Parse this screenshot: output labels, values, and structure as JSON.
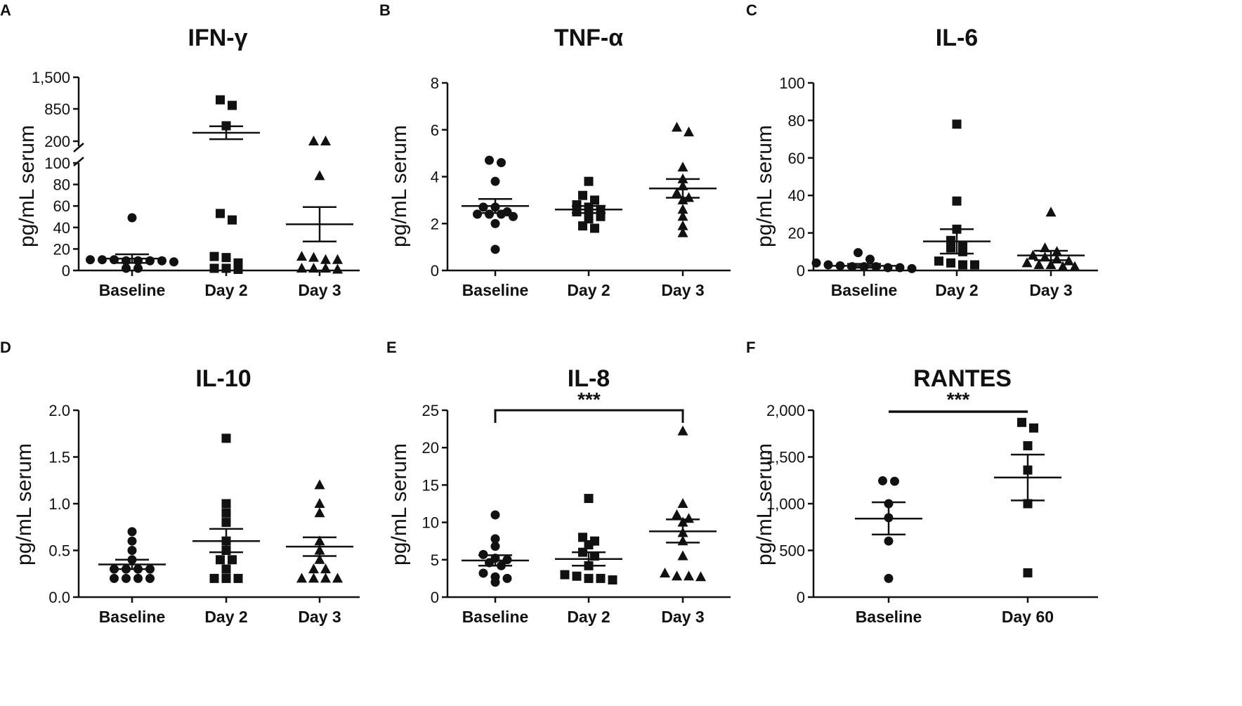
{
  "chart_data": [
    {
      "id": "A",
      "panel_letter": "A",
      "type": "scatter",
      "title": "IFN-γ",
      "xlabel": "",
      "ylabel": "pg/mL serum",
      "broken_axis": true,
      "categories": [
        "Baseline",
        "Day 2",
        "Day 3"
      ],
      "markers": [
        "circle",
        "square",
        "triangle"
      ],
      "yticks": [
        "0",
        "20",
        "40",
        "60",
        "80",
        "100",
        "200",
        "850",
        "1,500"
      ],
      "series": [
        {
          "name": "Baseline",
          "values": [
            10,
            9,
            10,
            9,
            8,
            9,
            10,
            9,
            2,
            2,
            49
          ],
          "mean": 11,
          "sem_low": 7,
          "sem_high": 15
        },
        {
          "name": "Day 2",
          "values": [
            1036,
            922,
            510,
            53,
            47,
            12,
            13,
            7,
            2,
            1,
            2
          ],
          "mean": 370,
          "sem_low": 240,
          "sem_high": 500
        },
        {
          "name": "Day 3",
          "values": [
            200,
            200,
            88,
            12,
            13,
            10,
            10,
            2,
            2,
            2,
            1
          ],
          "mean": 43,
          "sem_low": 27,
          "sem_high": 59
        }
      ]
    },
    {
      "id": "B",
      "panel_letter": "B",
      "type": "scatter",
      "title": "TNF-α",
      "xlabel": "",
      "ylabel": "pg/mL serum",
      "ylim": [
        0,
        8
      ],
      "categories": [
        "Baseline",
        "Day 2",
        "Day 3"
      ],
      "markers": [
        "circle",
        "square",
        "triangle"
      ],
      "yticks": [
        "0",
        "2",
        "4",
        "6",
        "8"
      ],
      "series": [
        {
          "name": "Baseline",
          "values": [
            4.7,
            4.6,
            3.8,
            2.7,
            2.7,
            2.5,
            2.4,
            2.4,
            2.4,
            2.3,
            2.0,
            0.9
          ],
          "mean": 2.75,
          "sem_low": 2.45,
          "sem_high": 3.05
        },
        {
          "name": "Day 2",
          "values": [
            3.8,
            3.2,
            3.0,
            2.8,
            2.7,
            2.6,
            2.5,
            2.4,
            2.3,
            2.2,
            1.9,
            1.8
          ],
          "mean": 2.6,
          "sem_low": 2.45,
          "sem_high": 2.75
        },
        {
          "name": "Day 3",
          "values": [
            6.1,
            5.9,
            4.4,
            3.9,
            3.6,
            3.3,
            3.1,
            3.0,
            2.6,
            2.3,
            1.9,
            1.6
          ],
          "mean": 3.5,
          "sem_low": 3.1,
          "sem_high": 3.9
        }
      ]
    },
    {
      "id": "C",
      "panel_letter": "C",
      "type": "scatter",
      "title": "IL-6",
      "xlabel": "",
      "ylabel": "pg/mL serum",
      "ylim": [
        0,
        100
      ],
      "categories": [
        "Baseline",
        "Day 2",
        "Day 3"
      ],
      "markers": [
        "circle",
        "square",
        "triangle"
      ],
      "yticks": [
        "0",
        "20",
        "40",
        "60",
        "80",
        "100"
      ],
      "series": [
        {
          "name": "Baseline",
          "values": [
            9.5,
            6,
            4,
            3,
            2.5,
            2,
            2,
            2,
            1.5,
            1.5,
            1
          ],
          "mean": 2.5,
          "sem_low": 1.5,
          "sem_high": 3.5
        },
        {
          "name": "Day 2",
          "values": [
            78,
            37,
            22,
            16,
            13,
            12,
            10,
            5,
            4,
            3,
            3
          ],
          "mean": 15.5,
          "sem_low": 9,
          "sem_high": 22
        },
        {
          "name": "Day 3",
          "values": [
            31,
            12,
            10,
            8,
            7,
            6,
            5,
            4,
            3,
            3,
            2,
            2
          ],
          "mean": 8,
          "sem_low": 5.5,
          "sem_high": 10.5
        }
      ]
    },
    {
      "id": "D",
      "panel_letter": "D",
      "type": "scatter",
      "title": "IL-10",
      "xlabel": "",
      "ylabel": "pg/mL serum",
      "ylim": [
        0,
        2.0
      ],
      "categories": [
        "Baseline",
        "Day 2",
        "Day 3"
      ],
      "markers": [
        "circle",
        "square",
        "triangle"
      ],
      "yticks": [
        "0.0",
        "0.5",
        "1.0",
        "1.5",
        "2.0"
      ],
      "series": [
        {
          "name": "Baseline",
          "values": [
            0.7,
            0.6,
            0.5,
            0.4,
            0.3,
            0.3,
            0.3,
            0.3,
            0.2,
            0.2,
            0.2,
            0.2
          ],
          "mean": 0.35,
          "sem_low": 0.3,
          "sem_high": 0.4
        },
        {
          "name": "Day 2",
          "values": [
            1.7,
            1.0,
            0.9,
            0.8,
            0.6,
            0.5,
            0.4,
            0.4,
            0.3,
            0.2,
            0.2,
            0.2
          ],
          "mean": 0.6,
          "sem_low": 0.48,
          "sem_high": 0.73
        },
        {
          "name": "Day 3",
          "values": [
            1.2,
            1.0,
            0.9,
            0.6,
            0.5,
            0.4,
            0.3,
            0.3,
            0.2,
            0.2,
            0.2,
            0.2
          ],
          "mean": 0.54,
          "sem_low": 0.44,
          "sem_high": 0.64
        }
      ]
    },
    {
      "id": "E",
      "panel_letter": "E",
      "type": "scatter",
      "title": "IL-8",
      "xlabel": "",
      "ylabel": "pg/mL serum",
      "ylim": [
        0,
        25
      ],
      "categories": [
        "Baseline",
        "Day 2",
        "Day 3"
      ],
      "markers": [
        "circle",
        "square",
        "triangle"
      ],
      "yticks": [
        "0",
        "5",
        "10",
        "15",
        "20",
        "25"
      ],
      "significance": {
        "label": "***",
        "from": 0,
        "to": 2,
        "style": "bracket"
      },
      "series": [
        {
          "name": "Baseline",
          "values": [
            11,
            7.8,
            6.8,
            5.7,
            5.2,
            5.0,
            4.6,
            4.2,
            3.2,
            2.7,
            2.5,
            2.0
          ],
          "mean": 4.9,
          "sem_low": 4.2,
          "sem_high": 5.6
        },
        {
          "name": "Day 2",
          "values": [
            13.2,
            8.0,
            7.0,
            7.5,
            6.0,
            5.5,
            4.2,
            3.0,
            2.8,
            2.5,
            2.3,
            2.5
          ],
          "mean": 5.1,
          "sem_low": 4.2,
          "sem_high": 6.0
        },
        {
          "name": "Day 3",
          "values": [
            22.2,
            12.5,
            11.0,
            10.5,
            10.0,
            8.6,
            7.5,
            5.5,
            3.2,
            2.8,
            2.8,
            2.7
          ],
          "mean": 8.8,
          "sem_low": 7.3,
          "sem_high": 10.4
        }
      ]
    },
    {
      "id": "F",
      "panel_letter": "F",
      "type": "scatter",
      "title": "RANTES",
      "xlabel": "",
      "ylabel": "pg/mL serum",
      "ylim": [
        0,
        2000
      ],
      "categories": [
        "Baseline",
        "Day 60"
      ],
      "markers": [
        "circle",
        "square"
      ],
      "yticks": [
        "0",
        "500",
        "1,000",
        "1,500",
        "2,000"
      ],
      "significance": {
        "label": "***",
        "from": 0,
        "to": 1,
        "style": "line"
      },
      "series": [
        {
          "name": "Baseline",
          "values": [
            1245,
            1240,
            1000,
            850,
            600,
            200
          ],
          "mean": 840,
          "sem_low": 670,
          "sem_high": 1015
        },
        {
          "name": "Day 60",
          "values": [
            1870,
            1810,
            1620,
            1360,
            1000,
            260
          ],
          "mean": 1280,
          "sem_low": 1035,
          "sem_high": 1525
        }
      ]
    }
  ]
}
